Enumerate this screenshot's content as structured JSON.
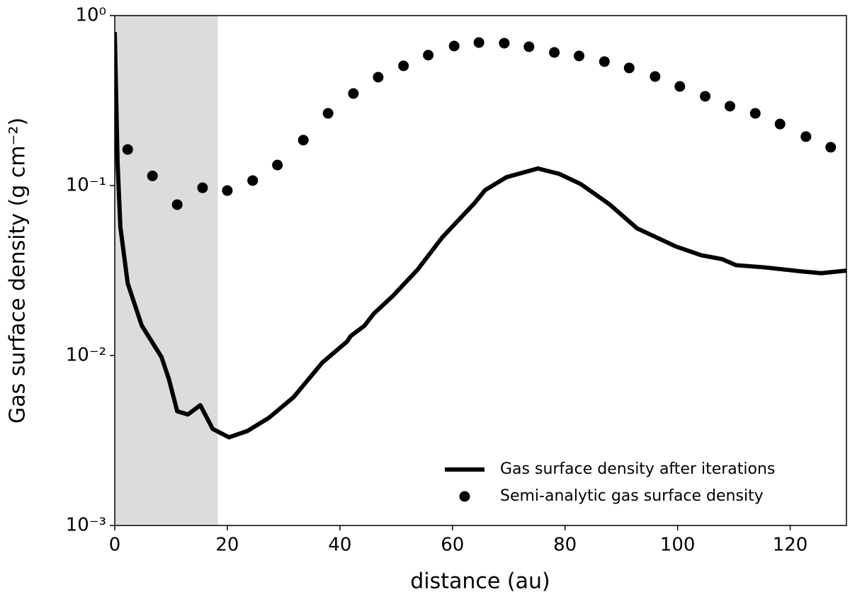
{
  "chart_data": {
    "type": "line",
    "xlabel": "distance (au)",
    "ylabel": "Gas surface density (g cm⁻²)",
    "xlim": [
      0,
      130
    ],
    "ylim": [
      0.001,
      1
    ],
    "xticks": [
      0,
      20,
      40,
      60,
      80,
      100,
      120
    ],
    "yticks": [
      {
        "value": 0.001,
        "label": "10⁻³"
      },
      {
        "value": 0.01,
        "label": "10⁻²"
      },
      {
        "value": 0.1,
        "label": "10⁻¹"
      },
      {
        "value": 1,
        "label": "10⁰"
      }
    ],
    "yscale": "log",
    "shaded_region": {
      "xlim": [
        0,
        18.3
      ],
      "color": "#dcdcdc"
    },
    "legend": "lower right",
    "series": [
      {
        "name": "Gas surface density after iterations",
        "type": "line",
        "color": "#000000",
        "x": [
          0,
          0.5,
          1.0,
          2.3,
          4.8,
          8.3,
          9.6,
          11.1,
          13.0,
          15.2,
          17.4,
          20.3,
          23.6,
          27.4,
          31.8,
          36.9,
          41.3,
          41.9,
          44.4,
          46.0,
          49.4,
          53.8,
          58.2,
          63.9,
          65.8,
          69.6,
          75.2,
          79.0,
          82.8,
          87.8,
          92.8,
          99.7,
          104.2,
          107.9,
          110.4,
          115.5,
          121.8,
          125.5,
          130
        ],
        "values": [
          0.8,
          0.136,
          0.057,
          0.0266,
          0.015,
          0.0098,
          0.0073,
          0.0047,
          0.0045,
          0.0051,
          0.0037,
          0.0033,
          0.0036,
          0.0043,
          0.0057,
          0.0091,
          0.0121,
          0.013,
          0.015,
          0.0176,
          0.0224,
          0.032,
          0.0496,
          0.0787,
          0.094,
          0.112,
          0.126,
          0.117,
          0.102,
          0.078,
          0.056,
          0.0438,
          0.0389,
          0.0369,
          0.034,
          0.033,
          0.0313,
          0.0305,
          0.0316
        ]
      },
      {
        "name": "Semi-analytic gas surface density",
        "type": "scatter",
        "color": "#000000",
        "x": [
          2.3,
          6.7,
          11.1,
          15.6,
          20.0,
          24.5,
          28.9,
          33.5,
          37.9,
          42.4,
          46.8,
          51.3,
          55.7,
          60.3,
          64.7,
          69.2,
          73.6,
          78.1,
          82.5,
          87.0,
          91.4,
          96.0,
          100.4,
          104.9,
          109.3,
          113.8,
          118.2,
          122.8,
          127.2
        ],
        "values": [
          0.163,
          0.114,
          0.0772,
          0.097,
          0.0934,
          0.107,
          0.132,
          0.185,
          0.266,
          0.348,
          0.434,
          0.506,
          0.585,
          0.662,
          0.694,
          0.688,
          0.656,
          0.607,
          0.579,
          0.536,
          0.492,
          0.438,
          0.383,
          0.335,
          0.293,
          0.266,
          0.23,
          0.194,
          0.168
        ]
      }
    ]
  }
}
